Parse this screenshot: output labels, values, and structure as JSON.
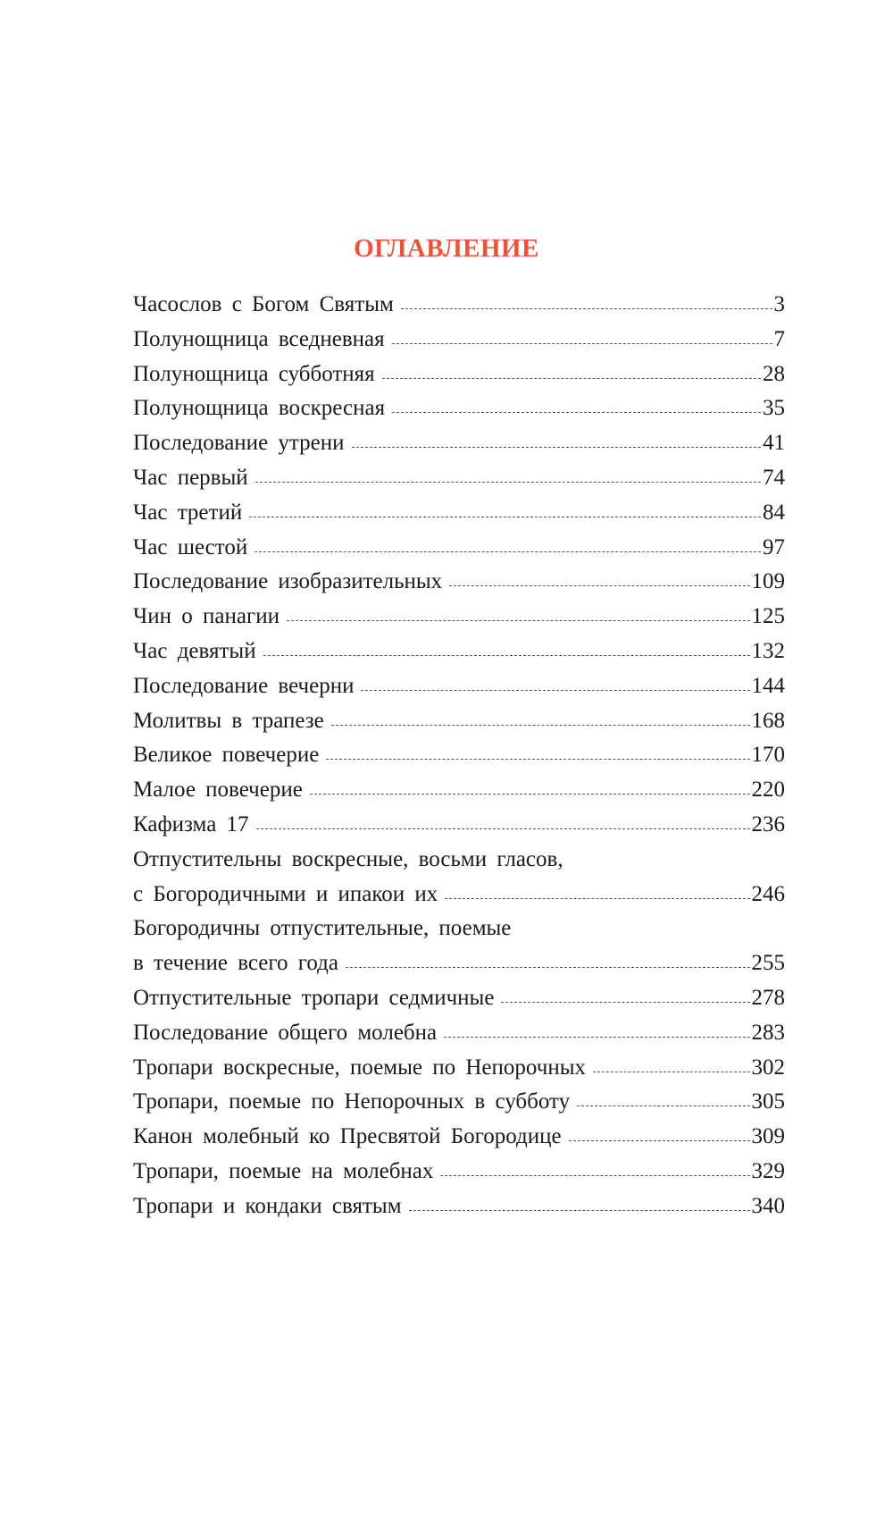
{
  "title": "ОГЛАВЛЕНИЕ",
  "title_color": "#e8553a",
  "entries": [
    {
      "lines": [
        "Часослов с Богом Святым"
      ],
      "page": "3"
    },
    {
      "lines": [
        "Полунощница вседневная"
      ],
      "page": "7"
    },
    {
      "lines": [
        "Полунощница субботняя"
      ],
      "page": "28"
    },
    {
      "lines": [
        "Полунощница воскресная"
      ],
      "page": "35"
    },
    {
      "lines": [
        "Последование утрени"
      ],
      "page": "41"
    },
    {
      "lines": [
        "Час первый"
      ],
      "page": "74"
    },
    {
      "lines": [
        "Час третий"
      ],
      "page": "84"
    },
    {
      "lines": [
        "Час шестой"
      ],
      "page": "97"
    },
    {
      "lines": [
        "Последование изобразительных"
      ],
      "page": "109"
    },
    {
      "lines": [
        "Чин о панагии"
      ],
      "page": "125"
    },
    {
      "lines": [
        "Час девятый"
      ],
      "page": "132"
    },
    {
      "lines": [
        "Последование вечерни"
      ],
      "page": "144"
    },
    {
      "lines": [
        "Молитвы в трапезе"
      ],
      "page": "168"
    },
    {
      "lines": [
        "Великое повечерие"
      ],
      "page": "170"
    },
    {
      "lines": [
        "Малое повечерие"
      ],
      "page": "220"
    },
    {
      "lines": [
        "Кафизма 17"
      ],
      "page": "236"
    },
    {
      "lines": [
        "Отпустительны воскресные, восьми гласов,",
        "с Богородичными и ипакои их"
      ],
      "page": "246"
    },
    {
      "lines": [
        "Богородичны отпустительные, поемые",
        "в течение всего года"
      ],
      "page": "255"
    },
    {
      "lines": [
        "Отпустительные тропари седмичные"
      ],
      "page": "278"
    },
    {
      "lines": [
        "Последование общего молебна"
      ],
      "page": "283"
    },
    {
      "lines": [
        "Тропари воскресные, поемые по Непорочных"
      ],
      "page": "302"
    },
    {
      "lines": [
        "Тропари, поемые по Непорочных в субботу"
      ],
      "page": "305"
    },
    {
      "lines": [
        "Канон молебный ко Пресвятой Богородице"
      ],
      "page": "309"
    },
    {
      "lines": [
        "Тропари, поемые на молебнах"
      ],
      "page": "329"
    },
    {
      "lines": [
        "Тропари и кондаки святым"
      ],
      "page": "340"
    }
  ]
}
